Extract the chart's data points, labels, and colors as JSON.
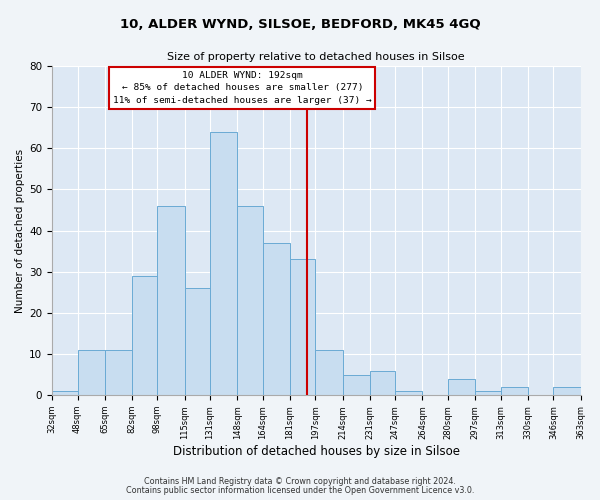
{
  "title": "10, ALDER WYND, SILSOE, BEDFORD, MK45 4GQ",
  "subtitle": "Size of property relative to detached houses in Silsoe",
  "xlabel": "Distribution of detached houses by size in Silsoe",
  "ylabel": "Number of detached properties",
  "bar_color": "#c8ddf0",
  "bar_edge_color": "#6aaad4",
  "fig_bg_color": "#f0f4f8",
  "ax_bg_color": "#dde8f4",
  "grid_color": "#ffffff",
  "vline_x": 192,
  "vline_color": "#cc0000",
  "annotation_title": "10 ALDER WYND: 192sqm",
  "annotation_line1": "← 85% of detached houses are smaller (277)",
  "annotation_line2": "11% of semi-detached houses are larger (37) →",
  "annotation_box_ec": "#cc0000",
  "footer_line1": "Contains HM Land Registry data © Crown copyright and database right 2024.",
  "footer_line2": "Contains public sector information licensed under the Open Government Licence v3.0.",
  "bins": [
    32,
    48,
    65,
    82,
    98,
    115,
    131,
    148,
    164,
    181,
    197,
    214,
    231,
    247,
    264,
    280,
    297,
    313,
    330,
    346,
    363
  ],
  "counts": [
    1,
    11,
    11,
    29,
    46,
    26,
    64,
    46,
    37,
    33,
    11,
    5,
    6,
    1,
    0,
    4,
    1,
    2,
    0,
    2
  ],
  "ylim": [
    0,
    80
  ],
  "yticks": [
    0,
    10,
    20,
    30,
    40,
    50,
    60,
    70,
    80
  ]
}
